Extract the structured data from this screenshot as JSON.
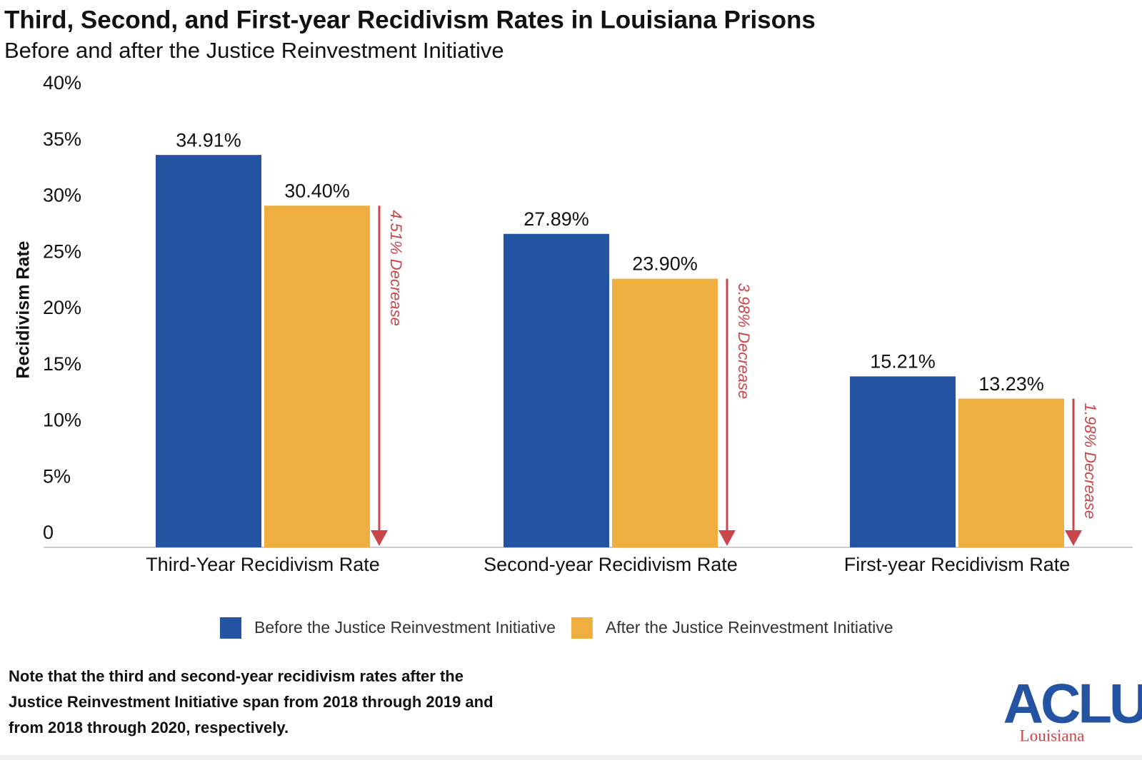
{
  "chart_data": {
    "type": "bar",
    "title": "Third, Second, and First-year Recidivism Rates in Louisiana Prisons",
    "subtitle": "Before and after the Justice Reinvestment Initiative",
    "y_label": "Recidivism Rate",
    "categories": [
      "Third-Year Recidivism Rate",
      "Second-year Recidivism Rate",
      "First-year Recidivism Rate"
    ],
    "series": [
      {
        "name": "Before the Justice Reinvestment Initiative",
        "color": "#2353a1",
        "values": [
          34.91,
          27.89,
          15.21
        ],
        "value_labels": [
          "34.91%",
          "27.89%",
          "15.21%"
        ]
      },
      {
        "name": "After the Justice Reinvestment Initiative",
        "color": "#efae40",
        "values": [
          30.4,
          23.9,
          13.23
        ],
        "value_labels": [
          "30.40%",
          "23.90%",
          "13.23%"
        ]
      }
    ],
    "annotations": [
      "4.51% Decrease",
      "3.98% Decrease",
      "1.98% Decrease"
    ],
    "annotation_color": "#c9464a",
    "ylim": [
      0,
      40
    ],
    "yticks": [
      0,
      {
        "value": 5,
        "label": "5%"
      },
      {
        "value": 10,
        "label": "10%"
      },
      {
        "value": 15,
        "label": "15%"
      },
      {
        "value": 20,
        "label": "20%"
      },
      {
        "value": 25,
        "label": "25%"
      },
      {
        "value": 30,
        "label": "30%"
      },
      {
        "value": 35,
        "label": "35%"
      },
      {
        "value": 40,
        "label": "40%"
      }
    ],
    "grid": false,
    "note": [
      "Note that the third and second-year recidivism rates after the",
      "Justice Reinvestment Initiative span from 2018 through 2019 and",
      "from 2018 through 2020, respectively."
    ],
    "logo": {
      "text": "ACLU",
      "subtext": "Louisiana"
    }
  }
}
